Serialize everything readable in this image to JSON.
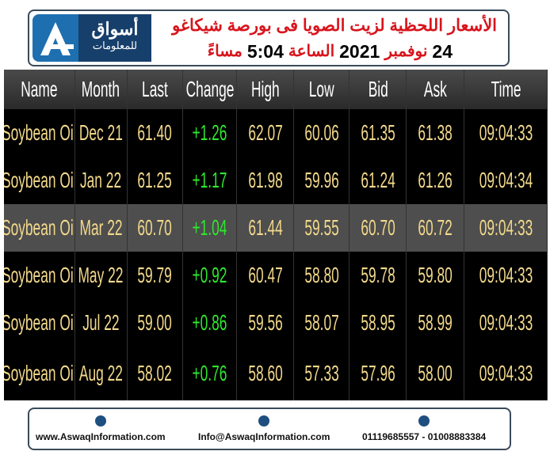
{
  "header": {
    "logo": {
      "name": "أسواق",
      "subtitle": "للمعلومات"
    },
    "title": "الأسعار اللحظية لزيت الصويا فى بورصة شيكاغو",
    "date_line": [
      "24",
      "نوفمبر",
      "2021",
      "الساعة",
      "5:04",
      "مساءً"
    ]
  },
  "table": {
    "columns": [
      "Name",
      "Month",
      "Last",
      "Change",
      "High",
      "Low",
      "Bid",
      "Ask",
      "Time"
    ],
    "rows": [
      [
        "Soybean Oil",
        "Dec 21",
        "61.40",
        "+1.26",
        "62.07",
        "60.06",
        "61.35",
        "61.38",
        "09:04:33"
      ],
      [
        "Soybean Oil",
        "Jan 22",
        "61.25",
        "+1.17",
        "61.98",
        "59.96",
        "61.24",
        "61.26",
        "09:04:34"
      ],
      [
        "Soybean Oil",
        "Mar 22",
        "60.70",
        "+1.04",
        "61.44",
        "59.55",
        "60.70",
        "60.72",
        "09:04:33"
      ],
      [
        "Soybean Oil",
        "May 22",
        "59.79",
        "+0.92",
        "60.47",
        "58.80",
        "59.78",
        "59.80",
        "09:04:33"
      ],
      [
        "Soybean Oil",
        "Jul 22",
        "59.00",
        "+0.86",
        "59.56",
        "58.07",
        "58.95",
        "58.99",
        "09:04:33"
      ],
      [
        "Soybean Oil",
        "Aug 22",
        "58.02",
        "+0.76",
        "58.60",
        "57.33",
        "57.96",
        "58.00",
        "09:04:33"
      ]
    ]
  },
  "footer": {
    "website": "www.AswaqInformation.com",
    "email": "Info@AswaqInformation.com",
    "phones": "01119685557 - 01008883384"
  }
}
